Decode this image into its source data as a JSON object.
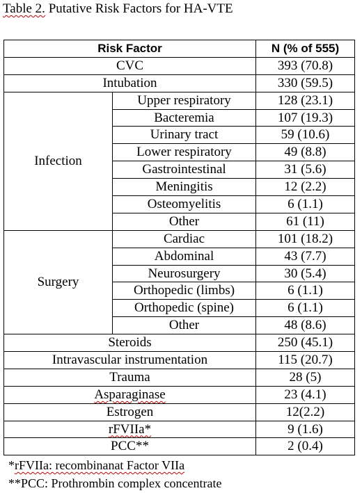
{
  "title": {
    "prefix": "Table 2.",
    "text": " Putative Risk Factors for HA-VTE"
  },
  "table": {
    "headers": [
      "Risk Factor",
      "N (% of 555)"
    ],
    "cvc": {
      "label": "CVC",
      "value": "393 (70.8)"
    },
    "intubation": {
      "label": "Intubation",
      "value": "330 (59.5)"
    },
    "infection": {
      "label": "Infection",
      "rows": [
        {
          "label": "Upper respiratory",
          "value": "128 (23.1)"
        },
        {
          "label": "Bacteremia",
          "value": "107 (19.3)"
        },
        {
          "label": "Urinary tract",
          "value": "59 (10.6)"
        },
        {
          "label": "Lower respiratory",
          "value": "49 (8.8)"
        },
        {
          "label": "Gastrointestinal",
          "value": "31 (5.6)"
        },
        {
          "label": "Meningitis",
          "value": "12 (2.2)"
        },
        {
          "label": "Osteomyelitis",
          "value": "6 (1.1)"
        },
        {
          "label": "Other",
          "value": "61 (11)"
        }
      ]
    },
    "surgery": {
      "label": "Surgery",
      "rows": [
        {
          "label": "Cardiac",
          "value": "101 (18.2)"
        },
        {
          "label": "Abdominal",
          "value": "43 (7.7)"
        },
        {
          "label": "Neurosurgery",
          "value": "30 (5.4)"
        },
        {
          "label": "Orthopedic (limbs)",
          "value": "6 (1.1)"
        },
        {
          "label": "Orthopedic (spine)",
          "value": "6 (1.1)"
        },
        {
          "label": "Other",
          "value": "48 (8.6)"
        }
      ]
    },
    "tail": [
      {
        "label": "Steroids",
        "value": "250 (45.1)"
      },
      {
        "label": "Intravascular instrumentation",
        "value": "115 (20.7)"
      },
      {
        "label": "Trauma",
        "value": "28 (5)"
      },
      {
        "label": "Asparaginase",
        "value": "23 (4.1)"
      },
      {
        "label": "Estrogen",
        "value": "12(2.2)"
      },
      {
        "label": "rFVIIa*",
        "value": "9 (1.6)"
      },
      {
        "label": "PCC**",
        "value": "2 (0.4)"
      }
    ]
  },
  "footnotes": {
    "first_marker": "*",
    "first_text": "rFVIIa: recombinanat Factor VIIa",
    "second": "**PCC: Prothrombin complex concentrate"
  }
}
